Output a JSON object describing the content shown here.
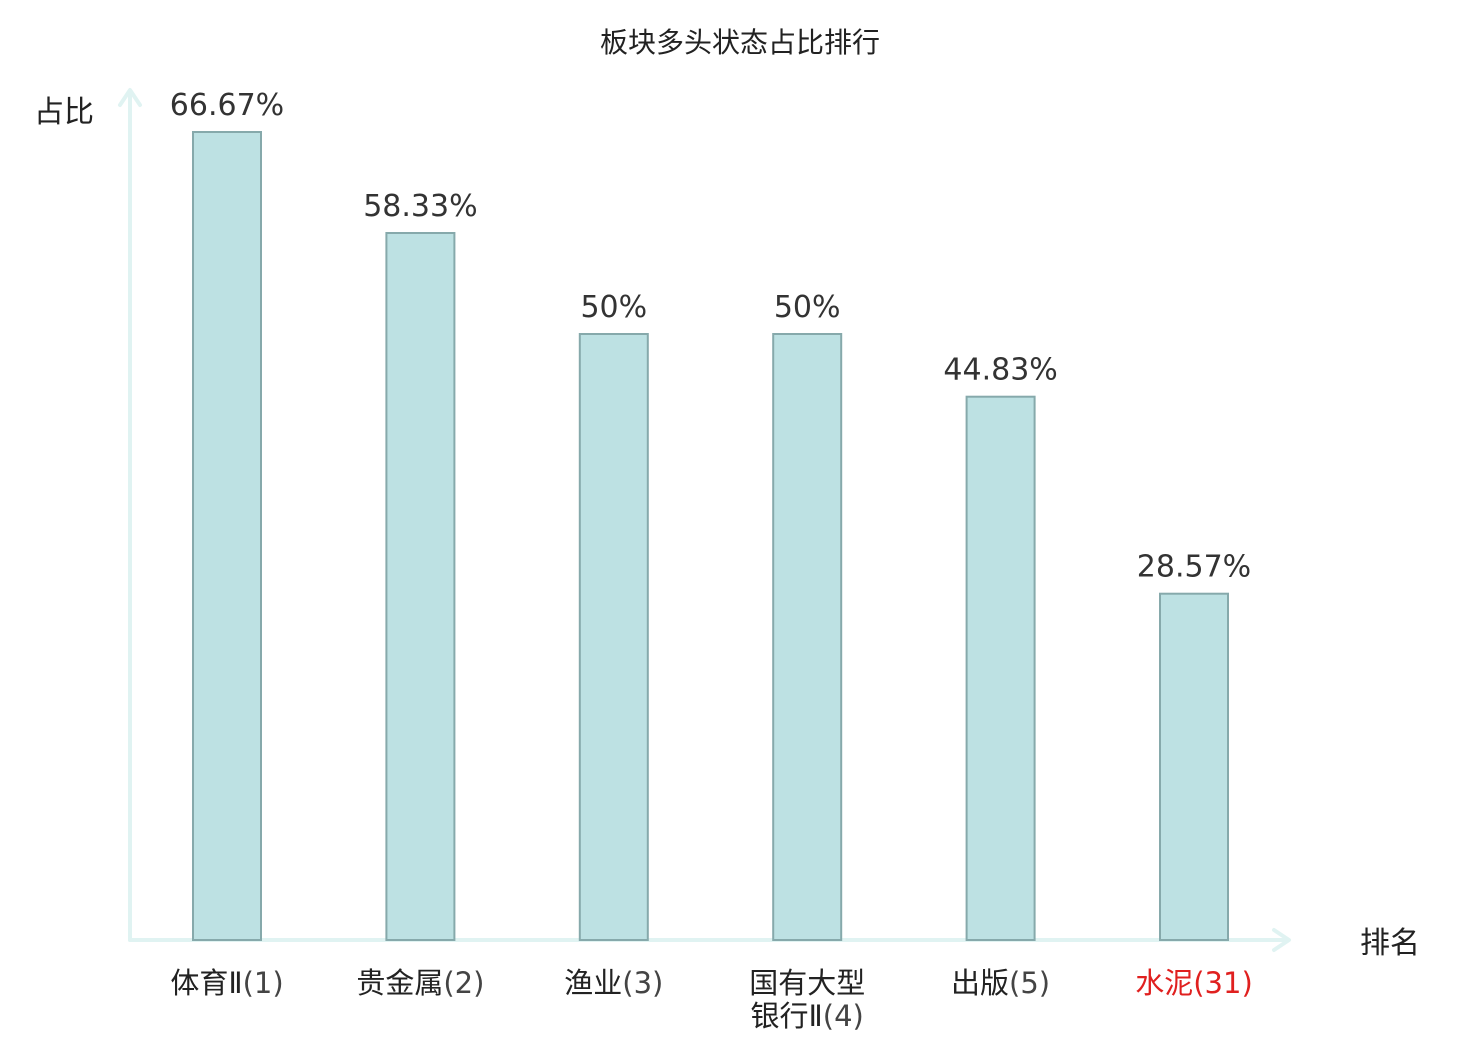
{
  "chart_data": {
    "type": "bar",
    "title": "板块多头状态占比排行",
    "ylabel": "占比",
    "xlabel": "排名",
    "ylim": [
      0,
      0.7
    ],
    "grid": false,
    "legend": "none",
    "categories": [
      {
        "name": "体育Ⅱ",
        "rank": "(1)"
      },
      {
        "name": "贵金属",
        "rank": "(2)"
      },
      {
        "name": "渔业",
        "rank": "(3)"
      },
      {
        "name": "国有大型银行Ⅱ",
        "rank": "(4)",
        "line1": "国有大型",
        "line2": "银行Ⅱ"
      },
      {
        "name": "出版",
        "rank": "(5)"
      },
      {
        "name": "水泥",
        "rank": "(31)",
        "highlight": true
      }
    ],
    "values": [
      66.67,
      58.33,
      50,
      50,
      44.83,
      28.57
    ],
    "value_labels": [
      "66.67%",
      "58.33%",
      "50%",
      "50%",
      "44.83%",
      "28.57%"
    ]
  },
  "colors": {
    "bar_fill": "#bde1e3",
    "bar_stroke": "#86a9ab",
    "axis": "#e0f3f2",
    "name_text": "#222222",
    "rank_text": "#444444",
    "highlight_text": "#e0201f"
  }
}
